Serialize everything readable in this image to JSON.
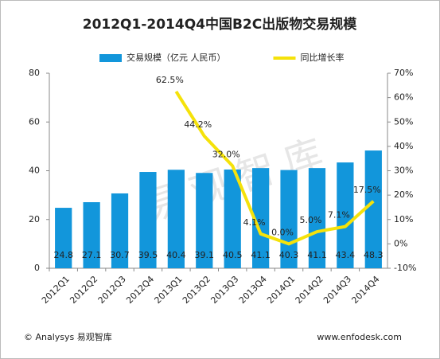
{
  "chart_data": {
    "type": "bar",
    "title": "2012Q1-2014Q4中国B2C出版物交易规模",
    "categories": [
      "2012Q1",
      "2012Q2",
      "2012Q3",
      "2012Q4",
      "2013Q1",
      "2013Q2",
      "2013Q3",
      "2013Q4",
      "2014Q1",
      "2014Q2",
      "2014Q3",
      "2014Q4"
    ],
    "series": [
      {
        "name": "交易规模（亿元 人民币）",
        "type": "bar",
        "color": "#1296db",
        "values": [
          24.8,
          27.1,
          30.7,
          39.5,
          40.4,
          39.1,
          40.5,
          41.1,
          40.3,
          41.1,
          43.4,
          48.3
        ]
      },
      {
        "name": "同比增长率",
        "type": "line",
        "axis": "y2",
        "color": "#f5e20a",
        "values": [
          null,
          null,
          null,
          null,
          62.5,
          44.2,
          32.0,
          4.1,
          0.0,
          5.0,
          7.1,
          17.5
        ],
        "value_labels": [
          null,
          null,
          null,
          null,
          "62.5%",
          "44.2%",
          "32.0%",
          "4.1%",
          "0.0%",
          "5.0%",
          "7.1%",
          "17.5%"
        ]
      }
    ],
    "ylim": [
      0,
      80
    ],
    "yticks": [
      0,
      20,
      40,
      60,
      80
    ],
    "y2lim": [
      -10,
      70
    ],
    "y2ticks": [
      {
        "value": -10,
        "label": "-10%"
      },
      {
        "value": 0,
        "label": "0%"
      },
      {
        "value": 10,
        "label": "10%"
      },
      {
        "value": 20,
        "label": "20%"
      },
      {
        "value": 30,
        "label": "30%"
      },
      {
        "value": 40,
        "label": "40%"
      },
      {
        "value": 50,
        "label": "50%"
      },
      {
        "value": 60,
        "label": "60%"
      },
      {
        "value": 70,
        "label": "70%"
      }
    ],
    "legend": "top",
    "watermark": "易观智库",
    "source": "© Analysys 易观智库",
    "website": "www.enfodesk.com"
  }
}
